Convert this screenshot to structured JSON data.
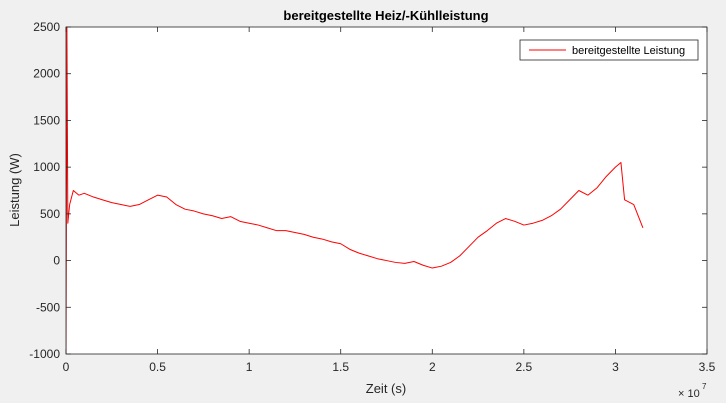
{
  "chart_data": {
    "type": "line",
    "title": "bereitgestellte Heiz/-Kühlleistung",
    "xlabel": "Zeit (s)",
    "ylabel": "Leistung (W)",
    "xlim": [
      0,
      35000000
    ],
    "ylim": [
      -1000,
      2500
    ],
    "x_tick_labels": [
      "0",
      "0.5",
      "1",
      "1.5",
      "2",
      "2.5",
      "3",
      "3.5"
    ],
    "x_tick_values": [
      0,
      5000000,
      10000000,
      15000000,
      20000000,
      25000000,
      30000000,
      35000000
    ],
    "x_exponent_base": "× 10",
    "x_exponent_power": "7",
    "y_ticks": [
      -1000,
      -500,
      0,
      500,
      1000,
      1500,
      2000,
      2500
    ],
    "y_tick_labels": [
      "-1000",
      "-500",
      "0",
      "500",
      "1000",
      "1500",
      "2000",
      "2500"
    ],
    "grid": false,
    "legend_position": "top-right",
    "series": [
      {
        "name": "bereitgestellte Leistung",
        "color": "#ff0000",
        "x": [
          0,
          50000,
          100000,
          200000,
          400000,
          700000,
          1000000,
          1500000,
          2000000,
          2500000,
          3000000,
          3500000,
          4000000,
          4500000,
          5000000,
          5500000,
          6000000,
          6500000,
          7000000,
          7500000,
          8000000,
          8500000,
          9000000,
          9500000,
          10000000,
          10500000,
          11000000,
          11500000,
          12000000,
          12500000,
          13000000,
          13500000,
          14000000,
          14500000,
          15000000,
          15500000,
          16000000,
          16500000,
          17000000,
          17500000,
          18000000,
          18500000,
          19000000,
          19500000,
          20000000,
          20500000,
          21000000,
          21500000,
          22000000,
          22500000,
          23000000,
          23500000,
          24000000,
          24500000,
          25000000,
          25500000,
          26000000,
          26500000,
          27000000,
          27500000,
          28000000,
          28500000,
          29000000,
          29500000,
          30000000,
          30300000,
          30500000,
          31000000,
          31500000
        ],
        "y": [
          -1000,
          2500,
          400,
          600,
          750,
          700,
          720,
          680,
          650,
          620,
          600,
          580,
          600,
          650,
          700,
          680,
          600,
          550,
          530,
          500,
          480,
          450,
          470,
          420,
          400,
          380,
          350,
          320,
          320,
          300,
          280,
          250,
          230,
          200,
          180,
          120,
          80,
          50,
          20,
          0,
          -20,
          -30,
          -10,
          -50,
          -80,
          -60,
          -20,
          50,
          150,
          250,
          320,
          400,
          450,
          420,
          380,
          400,
          430,
          480,
          550,
          650,
          750,
          700,
          780,
          900,
          1000,
          1050,
          650,
          600,
          350
        ]
      }
    ]
  }
}
